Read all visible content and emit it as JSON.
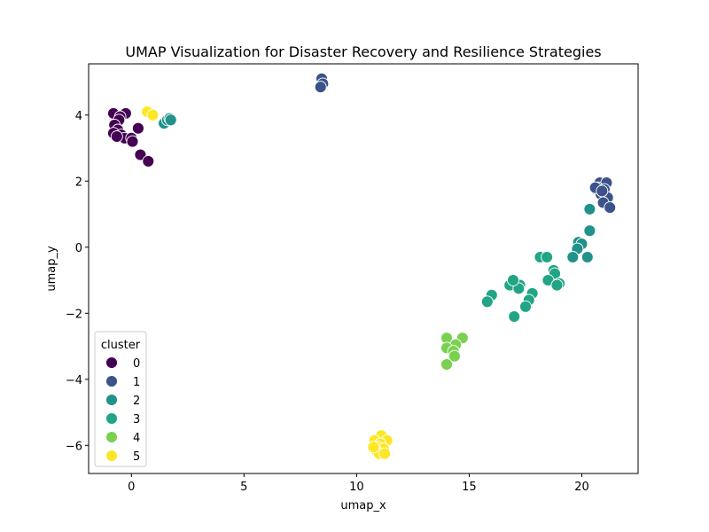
{
  "chart_data": {
    "type": "scatter",
    "title": "UMAP Visualization for Disaster Recovery and Resilience Strategies",
    "xlabel": "umap_x",
    "ylabel": "umap_y",
    "xlim": [
      -1.9,
      22.5
    ],
    "ylim": [
      -6.85,
      5.55
    ],
    "xticks": [
      0,
      5,
      10,
      15,
      20
    ],
    "yticks": [
      -6,
      -4,
      -2,
      0,
      2,
      4
    ],
    "grid": false,
    "legend": {
      "title": "cluster",
      "position": "lower-left"
    },
    "series": [
      {
        "name": "0",
        "color": "#440154",
        "points": [
          [
            -0.8,
            4.05
          ],
          [
            -0.25,
            4.05
          ],
          [
            -0.5,
            3.95
          ],
          [
            -0.55,
            3.85
          ],
          [
            -0.75,
            3.7
          ],
          [
            -0.6,
            3.55
          ],
          [
            -0.8,
            3.45
          ],
          [
            -0.45,
            3.4
          ],
          [
            -0.3,
            3.3
          ],
          [
            0.0,
            3.3
          ],
          [
            0.05,
            3.2
          ],
          [
            -0.65,
            3.35
          ],
          [
            0.3,
            3.6
          ],
          [
            0.4,
            2.8
          ],
          [
            0.75,
            2.6
          ]
        ]
      },
      {
        "name": "1",
        "color": "#3b528b",
        "points": [
          [
            8.45,
            5.1
          ],
          [
            8.5,
            4.95
          ],
          [
            8.4,
            4.85
          ],
          [
            20.8,
            1.95
          ],
          [
            21.1,
            1.95
          ],
          [
            20.7,
            1.8
          ],
          [
            21.0,
            1.75
          ],
          [
            20.85,
            1.6
          ],
          [
            21.15,
            1.5
          ],
          [
            20.95,
            1.35
          ],
          [
            21.25,
            1.2
          ],
          [
            20.6,
            1.8
          ],
          [
            20.9,
            1.7
          ]
        ]
      },
      {
        "name": "2",
        "color": "#21918c",
        "points": [
          [
            1.45,
            3.75
          ],
          [
            1.6,
            3.85
          ],
          [
            1.7,
            3.9
          ],
          [
            1.75,
            3.85
          ],
          [
            20.35,
            1.15
          ],
          [
            20.35,
            0.5
          ],
          [
            19.85,
            0.15
          ],
          [
            20.0,
            0.1
          ],
          [
            19.8,
            -0.05
          ],
          [
            19.6,
            -0.3
          ],
          [
            20.25,
            -0.3
          ]
        ]
      },
      {
        "name": "3",
        "color": "#21a585",
        "points": [
          [
            18.15,
            -0.3
          ],
          [
            18.45,
            -0.3
          ],
          [
            18.75,
            -0.7
          ],
          [
            18.8,
            -0.8
          ],
          [
            18.5,
            -1.0
          ],
          [
            19.0,
            -1.1
          ],
          [
            18.9,
            -1.15
          ],
          [
            16.8,
            -1.15
          ],
          [
            17.25,
            -1.15
          ],
          [
            17.2,
            -1.25
          ],
          [
            16.95,
            -1.0
          ],
          [
            17.8,
            -1.4
          ],
          [
            17.65,
            -1.6
          ],
          [
            17.5,
            -1.8
          ],
          [
            16.0,
            -1.45
          ],
          [
            15.8,
            -1.65
          ],
          [
            17.0,
            -2.1
          ]
        ]
      },
      {
        "name": "4",
        "color": "#7ad151",
        "points": [
          [
            14.0,
            -2.75
          ],
          [
            14.7,
            -2.75
          ],
          [
            14.4,
            -2.95
          ],
          [
            14.0,
            -3.05
          ],
          [
            14.3,
            -3.15
          ],
          [
            14.35,
            -3.3
          ],
          [
            14.0,
            -3.55
          ]
        ]
      },
      {
        "name": "5",
        "color": "#fde725",
        "points": [
          [
            0.7,
            4.1
          ],
          [
            0.95,
            4.0
          ],
          [
            11.1,
            -5.7
          ],
          [
            11.35,
            -5.85
          ],
          [
            10.8,
            -5.85
          ],
          [
            11.05,
            -5.95
          ],
          [
            10.95,
            -6.05
          ],
          [
            11.2,
            -6.1
          ],
          [
            10.85,
            -6.15
          ],
          [
            11.0,
            -6.25
          ],
          [
            11.25,
            -6.25
          ],
          [
            10.75,
            -6.05
          ]
        ]
      }
    ]
  }
}
